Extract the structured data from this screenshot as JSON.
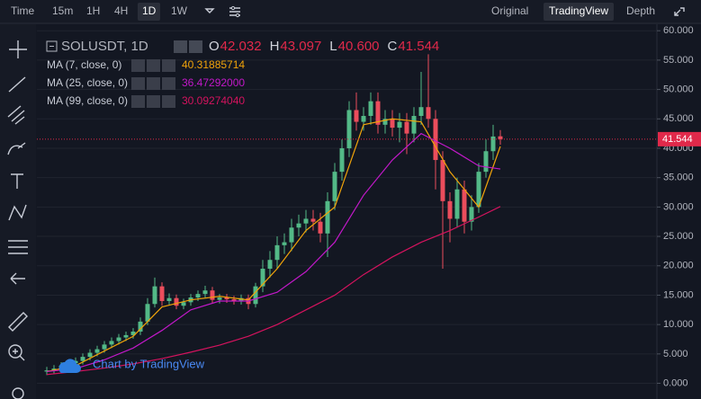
{
  "toolbar": {
    "intervals": [
      "Time",
      "15m",
      "1H",
      "4H",
      "1D",
      "1W"
    ],
    "active_interval": 4,
    "views": [
      "Original",
      "TradingView",
      "Depth"
    ],
    "active_view": 1
  },
  "legend": {
    "symbol": "SOLUSDT, 1D",
    "ohlc": [
      {
        "label": "O",
        "value": "42.032"
      },
      {
        "label": "H",
        "value": "43.097"
      },
      {
        "label": "L",
        "value": "40.600"
      },
      {
        "label": "C",
        "value": "41.544"
      }
    ]
  },
  "watermark": "Chart by TradingView",
  "chart_data": {
    "type": "candlestick",
    "open": [
      2.0,
      2.2,
      2.5,
      3.0,
      3.4,
      3.8,
      4.5,
      5.2,
      5.8,
      6.6,
      7.2,
      7.8,
      8.2,
      8.8,
      10.5,
      13.5,
      16.5,
      14.0,
      14.5,
      13.2,
      13.8,
      14.6,
      15.2,
      15.8,
      14.2,
      14.6,
      14.3,
      14.0,
      14.5,
      13.5,
      16.5,
      19.5,
      21.0,
      23.5,
      24.0,
      26.5,
      27.2,
      28.0,
      27.5,
      25.5,
      31.0,
      36.0,
      40.0,
      46.5,
      44.5,
      45.5,
      48.0,
      44.0,
      45.0,
      43.5,
      44.5,
      42.5,
      45.5,
      47.0,
      45.0,
      38.0,
      31.0,
      28.0,
      33.0,
      27.5,
      30.0,
      36.0,
      39.5,
      42.032
    ],
    "high": [
      2.8,
      3.1,
      3.6,
      4.0,
      4.4,
      5.1,
      5.8,
      6.4,
      7.2,
      7.8,
      8.4,
      8.8,
      9.4,
      11.2,
      14.5,
      18.0,
      17.2,
      15.3,
      15.1,
      14.4,
      15.2,
      15.8,
      16.6,
      16.4,
      15.2,
      15.2,
      14.9,
      15.1,
      15.1,
      17.1,
      21.0,
      22.5,
      25.0,
      25.5,
      28.0,
      28.7,
      29.5,
      29.5,
      29.0,
      32.5,
      37.5,
      41.5,
      48.0,
      49.5,
      47.0,
      49.5,
      49.5,
      46.5,
      46.5,
      46.0,
      46.0,
      47.0,
      53.0,
      56.0,
      46.5,
      39.5,
      32.5,
      35.0,
      34.5,
      32.0,
      37.5,
      41.5,
      44.0,
      43.097
    ],
    "low": [
      1.4,
      1.6,
      1.9,
      2.4,
      2.8,
      3.2,
      3.9,
      4.6,
      5.2,
      6.0,
      6.6,
      7.2,
      7.6,
      8.2,
      9.9,
      12.9,
      13.2,
      13.4,
      12.6,
      12.6,
      13.2,
      14.0,
      14.6,
      13.6,
      13.6,
      13.7,
      13.4,
      13.4,
      12.6,
      12.9,
      15.5,
      18.0,
      19.5,
      22.0,
      22.5,
      25.0,
      25.7,
      26.0,
      24.0,
      21.5,
      29.5,
      34.5,
      38.5,
      43.0,
      43.0,
      44.0,
      42.5,
      42.5,
      42.0,
      41.0,
      39.0,
      41.0,
      44.0,
      43.5,
      33.0,
      19.5,
      24.0,
      26.5,
      25.5,
      26.0,
      29.0,
      35.0,
      38.0,
      40.6
    ],
    "close": [
      2.2,
      2.5,
      3.0,
      3.4,
      3.8,
      4.5,
      5.2,
      5.8,
      6.6,
      7.2,
      7.8,
      8.2,
      8.8,
      10.5,
      13.5,
      16.5,
      14.0,
      14.5,
      13.2,
      13.8,
      14.6,
      15.2,
      15.8,
      14.2,
      14.6,
      14.3,
      14.0,
      14.5,
      13.5,
      16.5,
      19.5,
      21.0,
      23.5,
      24.0,
      26.5,
      27.2,
      28.0,
      27.5,
      25.5,
      31.0,
      36.0,
      40.0,
      46.5,
      44.5,
      45.5,
      48.0,
      44.0,
      45.0,
      43.5,
      44.5,
      42.5,
      45.5,
      47.0,
      45.0,
      38.0,
      31.0,
      28.0,
      33.0,
      27.5,
      30.0,
      36.0,
      39.5,
      42.0,
      41.544
    ],
    "up_color": "#53b987",
    "down_color": "#eb4d5c",
    "series": [
      {
        "name": "MA (7, close, 0)",
        "value_label": "40.31885714",
        "color": "#f0a30a",
        "x": [
          0,
          4,
          8,
          12,
          16,
          20,
          24,
          28,
          32,
          36,
          40,
          44,
          48,
          52,
          56,
          60,
          63
        ],
        "values": [
          2.0,
          3.0,
          5.5,
          8.0,
          13.0,
          14.2,
          14.8,
          14.2,
          19.5,
          26.0,
          30.0,
          44.0,
          45.0,
          44.5,
          36.0,
          30.0,
          40.32
        ]
      },
      {
        "name": "MA (25, close, 0)",
        "value_label": "36.47292000",
        "color": "#c218c9",
        "x": [
          0,
          4,
          8,
          12,
          16,
          20,
          24,
          28,
          32,
          36,
          40,
          44,
          48,
          52,
          56,
          60,
          63
        ],
        "values": [
          2.0,
          2.5,
          4.0,
          6.0,
          9.0,
          12.5,
          14.0,
          14.0,
          15.5,
          19.0,
          24.0,
          32.0,
          38.0,
          42.5,
          40.0,
          37.0,
          36.47
        ]
      },
      {
        "name": "MA (99, close, 0)",
        "value_label": "30.09274040",
        "color": "#d4135e",
        "x": [
          0,
          4,
          8,
          12,
          16,
          20,
          24,
          28,
          32,
          36,
          40,
          44,
          48,
          52,
          56,
          60,
          63
        ],
        "values": [
          1.5,
          2.0,
          2.6,
          3.3,
          4.2,
          5.3,
          6.5,
          8.0,
          10.0,
          12.5,
          15.0,
          18.5,
          21.5,
          24.0,
          26.0,
          28.3,
          30.09
        ]
      }
    ],
    "ylim": [
      -2.67,
      61.1
    ],
    "yticks": [
      {
        "value": 0,
        "label": "0.000"
      },
      {
        "value": 5,
        "label": "5.000"
      },
      {
        "value": 10,
        "label": "10.000"
      },
      {
        "value": 15,
        "label": "15.000"
      },
      {
        "value": 20,
        "label": "20.000"
      },
      {
        "value": 25,
        "label": "25.000"
      },
      {
        "value": 30,
        "label": "30.000"
      },
      {
        "value": 35,
        "label": "35.000"
      },
      {
        "value": 40,
        "label": "40.000"
      },
      {
        "value": 45,
        "label": "45.000"
      },
      {
        "value": 50,
        "label": "50.000"
      },
      {
        "value": 55,
        "label": "55.000"
      },
      {
        "value": 60,
        "label": "60.000"
      }
    ],
    "grid": true
  }
}
